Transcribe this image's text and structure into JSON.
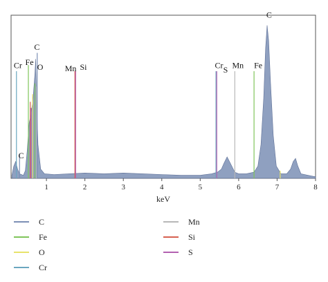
{
  "chart_data": {
    "type": "area",
    "xlabel": "keV",
    "xlim": [
      0.08,
      8
    ],
    "xticks": [
      "1",
      "2",
      "3",
      "4",
      "5",
      "6",
      "7",
      "8"
    ],
    "colors": {
      "C": "#7b8fb5",
      "Fe": "#7fc45a",
      "O": "#e8e36a",
      "Cr": "#6aa6bf",
      "Mn": "#b7b7b7",
      "Si": "#d6604f",
      "S": "#b260b0"
    },
    "spectrum": [
      [
        0.1,
        0.02
      ],
      [
        0.15,
        0.08
      ],
      [
        0.2,
        0.11
      ],
      [
        0.25,
        0.06
      ],
      [
        0.3,
        0.03
      ],
      [
        0.4,
        0.02
      ],
      [
        0.45,
        0.05
      ],
      [
        0.5,
        0.18
      ],
      [
        0.55,
        0.36
      ],
      [
        0.6,
        0.42
      ],
      [
        0.65,
        0.52
      ],
      [
        0.7,
        0.68
      ],
      [
        0.72,
        0.78
      ],
      [
        0.74,
        0.55
      ],
      [
        0.78,
        0.22
      ],
      [
        0.85,
        0.06
      ],
      [
        0.95,
        0.03
      ],
      [
        1.2,
        0.025
      ],
      [
        1.6,
        0.03
      ],
      [
        2.0,
        0.035
      ],
      [
        2.5,
        0.03
      ],
      [
        3.0,
        0.035
      ],
      [
        3.5,
        0.03
      ],
      [
        4.0,
        0.025
      ],
      [
        4.5,
        0.02
      ],
      [
        5.0,
        0.02
      ],
      [
        5.3,
        0.03
      ],
      [
        5.45,
        0.04
      ],
      [
        5.55,
        0.06
      ],
      [
        5.62,
        0.1
      ],
      [
        5.7,
        0.14
      ],
      [
        5.78,
        0.1
      ],
      [
        5.9,
        0.04
      ],
      [
        6.0,
        0.03
      ],
      [
        6.2,
        0.03
      ],
      [
        6.4,
        0.04
      ],
      [
        6.5,
        0.08
      ],
      [
        6.58,
        0.22
      ],
      [
        6.65,
        0.52
      ],
      [
        6.7,
        0.85
      ],
      [
        6.74,
        1.0
      ],
      [
        6.78,
        0.9
      ],
      [
        6.83,
        0.62
      ],
      [
        6.9,
        0.28
      ],
      [
        6.98,
        0.08
      ],
      [
        7.1,
        0.03
      ],
      [
        7.25,
        0.03
      ],
      [
        7.35,
        0.06
      ],
      [
        7.42,
        0.11
      ],
      [
        7.48,
        0.13
      ],
      [
        7.54,
        0.08
      ],
      [
        7.62,
        0.03
      ],
      [
        7.8,
        0.02
      ],
      [
        8.0,
        0.01
      ]
    ],
    "peak_lines": [
      {
        "element": "Cr",
        "x": 0.22,
        "height": 0.7
      },
      {
        "element": "C",
        "x": 0.3,
        "height": 0.16
      },
      {
        "element": "Fe",
        "x": 0.53,
        "height": 0.74
      },
      {
        "element": "Si",
        "x": 0.58,
        "height": 0.5
      },
      {
        "element": "S",
        "x": 0.6,
        "height": 0.46
      },
      {
        "element": "O",
        "x": 0.64,
        "height": 0.55
      },
      {
        "element": "Fe",
        "x": 0.7,
        "height": 0.62
      },
      {
        "element": "Mn",
        "x": 0.74,
        "height": 0.6
      },
      {
        "element": "C",
        "x": 0.76,
        "height": 0.82
      },
      {
        "element": "Si",
        "x": 1.74,
        "height": 0.7
      },
      {
        "element": "S",
        "x": 1.76,
        "height": 0.7
      },
      {
        "element": "Cr",
        "x": 5.41,
        "height": 0.7
      },
      {
        "element": "S",
        "x": 5.43,
        "height": 0.7
      },
      {
        "element": "Mn",
        "x": 5.9,
        "height": 0.7
      },
      {
        "element": "Fe",
        "x": 6.4,
        "height": 0.7
      },
      {
        "element": "O",
        "x": 7.08,
        "height": 0.05
      }
    ],
    "peak_labels": [
      {
        "text": "Cr",
        "x": 0.15,
        "height": 0.72
      },
      {
        "text": "Fe",
        "x": 0.45,
        "height": 0.74
      },
      {
        "text": "C",
        "x": 0.68,
        "height": 0.84
      },
      {
        "text": "O",
        "x": 0.76,
        "height": 0.71
      },
      {
        "text": "C",
        "x": 0.27,
        "height": 0.13
      },
      {
        "text": "Mn",
        "x": 1.48,
        "height": 0.7
      },
      {
        "text": "Si",
        "x": 1.87,
        "height": 0.71
      },
      {
        "text": "Cr",
        "x": 5.38,
        "height": 0.72
      },
      {
        "text": "S",
        "x": 5.6,
        "height": 0.69
      },
      {
        "text": "Mn",
        "x": 5.83,
        "height": 0.72
      },
      {
        "text": "Fe",
        "x": 6.4,
        "height": 0.72
      },
      {
        "text": "C",
        "x": 6.72,
        "height": 1.05
      }
    ],
    "legend": [
      {
        "label": "C",
        "color": "#7b8fb5"
      },
      {
        "label": "Fe",
        "color": "#7fc45a"
      },
      {
        "label": "O",
        "color": "#e8e36a"
      },
      {
        "label": "Cr",
        "color": "#6aa6bf"
      },
      {
        "label": "Mn",
        "color": "#b7b7b7"
      },
      {
        "label": "Si",
        "color": "#d6604f"
      },
      {
        "label": "S",
        "color": "#b260b0"
      }
    ]
  }
}
